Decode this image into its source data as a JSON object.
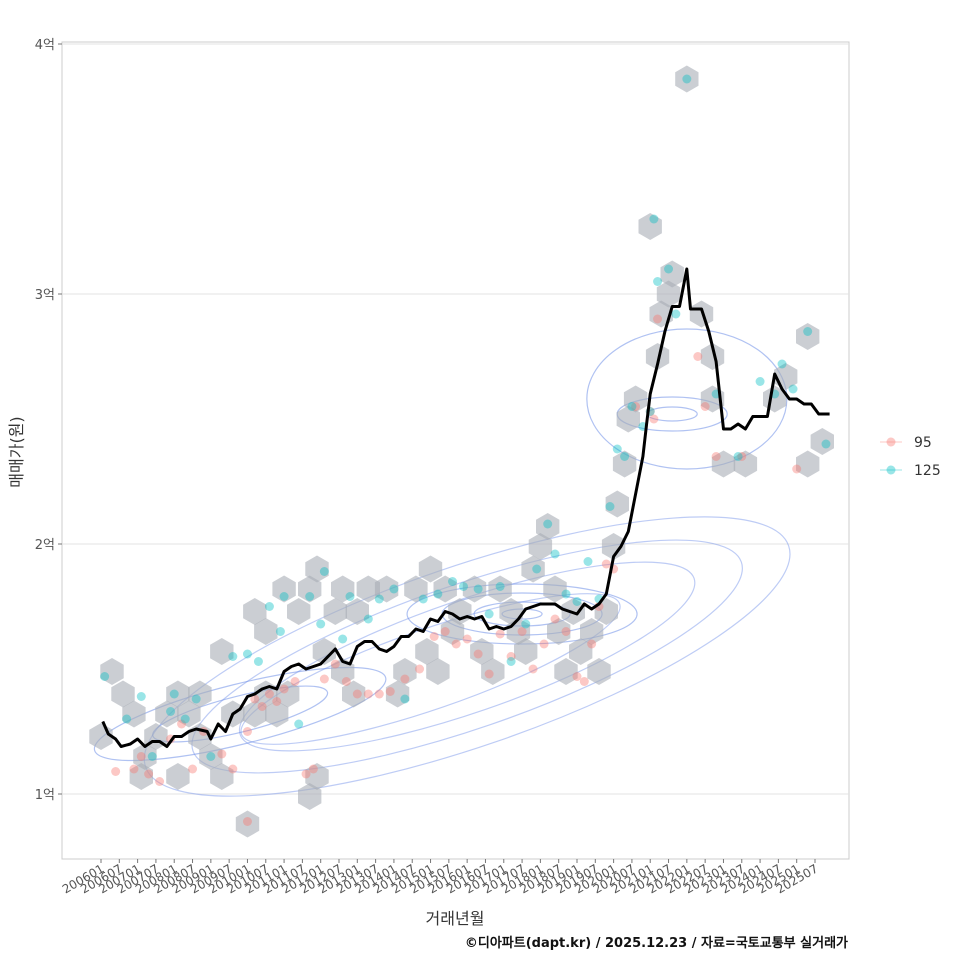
{
  "chart_data": {
    "type": "scatter",
    "title": "",
    "xlabel": "거래년월",
    "ylabel": "매매가(원)",
    "caption": "©디아파트(dapt.kr) / 2025.12.23 / 자료=국토교통부 실거래가",
    "x_ticks": [
      "200601",
      "200607",
      "200701",
      "200707",
      "200801",
      "200807",
      "200901",
      "200907",
      "201001",
      "201007",
      "201101",
      "201107",
      "201201",
      "201207",
      "201301",
      "201307",
      "201401",
      "201407",
      "201501",
      "201507",
      "201601",
      "201607",
      "201701",
      "201707",
      "201801",
      "201807",
      "201901",
      "201907",
      "202001",
      "202007",
      "202101",
      "202107",
      "202201",
      "202207",
      "202301",
      "202307",
      "202401",
      "202407",
      "202501",
      "202507"
    ],
    "y_ticks": [
      {
        "value": 1.0,
        "label": "1억"
      },
      {
        "value": 2.0,
        "label": "2억"
      },
      {
        "value": 3.0,
        "label": "3억"
      },
      {
        "value": 4.0,
        "label": "4억"
      }
    ],
    "ylim": [
      0.75,
      4.03
    ],
    "xlim": [
      2005.6,
      2026.5
    ],
    "grid": true,
    "legend_position": "right",
    "legend": [
      {
        "name": "95",
        "color": "#F8766D"
      },
      {
        "name": "125",
        "color": "#00BFC4"
      }
    ],
    "series": [
      {
        "name": "95",
        "color": "#F8766D",
        "points": [
          [
            2006.4,
            1.09
          ],
          [
            2006.9,
            1.1
          ],
          [
            2007.1,
            1.15
          ],
          [
            2007.3,
            1.08
          ],
          [
            2007.6,
            1.05
          ],
          [
            2007.9,
            1.22
          ],
          [
            2008.2,
            1.28
          ],
          [
            2008.5,
            1.1
          ],
          [
            2008.8,
            1.25
          ],
          [
            2009.3,
            1.16
          ],
          [
            2009.6,
            1.1
          ],
          [
            2010.0,
            1.25
          ],
          [
            2010.2,
            1.38
          ],
          [
            2010.4,
            1.35
          ],
          [
            2010.6,
            1.4
          ],
          [
            2010.8,
            1.37
          ],
          [
            2011.0,
            1.42
          ],
          [
            2011.3,
            1.45
          ],
          [
            2011.6,
            1.08
          ],
          [
            2011.8,
            1.1
          ],
          [
            2012.1,
            1.46
          ],
          [
            2012.4,
            1.52
          ],
          [
            2012.7,
            1.45
          ],
          [
            2013.0,
            1.4
          ],
          [
            2013.3,
            1.4
          ],
          [
            2013.6,
            1.4
          ],
          [
            2013.9,
            1.41
          ],
          [
            2014.3,
            1.46
          ],
          [
            2014.7,
            1.5
          ],
          [
            2015.1,
            1.63
          ],
          [
            2015.4,
            1.65
          ],
          [
            2015.7,
            1.6
          ],
          [
            2016.0,
            1.62
          ],
          [
            2016.3,
            1.56
          ],
          [
            2016.6,
            1.48
          ],
          [
            2016.9,
            1.64
          ],
          [
            2017.2,
            1.55
          ],
          [
            2017.5,
            1.65
          ],
          [
            2017.8,
            1.5
          ],
          [
            2018.1,
            1.6
          ],
          [
            2018.4,
            1.7
          ],
          [
            2018.7,
            1.65
          ],
          [
            2019.0,
            1.47
          ],
          [
            2019.2,
            1.45
          ],
          [
            2019.4,
            1.6
          ],
          [
            2019.6,
            1.75
          ],
          [
            2019.8,
            1.92
          ],
          [
            2020.0,
            1.9
          ],
          [
            2020.6,
            2.55
          ],
          [
            2021.0,
            2.53
          ],
          [
            2021.1,
            2.5
          ],
          [
            2021.2,
            2.9
          ],
          [
            2022.3,
            2.75
          ],
          [
            2022.5,
            2.55
          ],
          [
            2022.8,
            2.35
          ],
          [
            2023.5,
            2.35
          ],
          [
            2025.0,
            2.3
          ],
          [
            2010.0,
            0.89
          ]
        ]
      },
      {
        "name": "125",
        "color": "#00BFC4",
        "points": [
          [
            2006.1,
            1.47
          ],
          [
            2006.7,
            1.3
          ],
          [
            2007.1,
            1.39
          ],
          [
            2007.4,
            1.15
          ],
          [
            2007.9,
            1.33
          ],
          [
            2008.0,
            1.4
          ],
          [
            2008.3,
            1.3
          ],
          [
            2008.6,
            1.38
          ],
          [
            2009.0,
            1.15
          ],
          [
            2009.6,
            1.55
          ],
          [
            2010.0,
            1.56
          ],
          [
            2010.3,
            1.53
          ],
          [
            2010.6,
            1.75
          ],
          [
            2010.9,
            1.65
          ],
          [
            2011.0,
            1.79
          ],
          [
            2011.4,
            1.28
          ],
          [
            2011.7,
            1.79
          ],
          [
            2012.0,
            1.68
          ],
          [
            2012.1,
            1.89
          ],
          [
            2012.6,
            1.62
          ],
          [
            2012.8,
            1.79
          ],
          [
            2013.3,
            1.7
          ],
          [
            2013.6,
            1.78
          ],
          [
            2014.0,
            1.82
          ],
          [
            2014.3,
            1.38
          ],
          [
            2014.8,
            1.78
          ],
          [
            2015.2,
            1.8
          ],
          [
            2015.6,
            1.85
          ],
          [
            2015.9,
            1.83
          ],
          [
            2016.3,
            1.82
          ],
          [
            2016.6,
            1.72
          ],
          [
            2016.9,
            1.83
          ],
          [
            2017.2,
            1.53
          ],
          [
            2017.6,
            1.68
          ],
          [
            2017.9,
            1.9
          ],
          [
            2018.2,
            2.08
          ],
          [
            2018.4,
            1.96
          ],
          [
            2018.7,
            1.8
          ],
          [
            2019.0,
            1.77
          ],
          [
            2019.3,
            1.93
          ],
          [
            2019.6,
            1.78
          ],
          [
            2019.9,
            2.15
          ],
          [
            2020.1,
            2.38
          ],
          [
            2020.3,
            2.35
          ],
          [
            2020.5,
            2.55
          ],
          [
            2020.8,
            2.47
          ],
          [
            2021.0,
            2.53
          ],
          [
            2021.1,
            3.3
          ],
          [
            2021.2,
            3.05
          ],
          [
            2021.5,
            3.1
          ],
          [
            2021.7,
            2.92
          ],
          [
            2022.0,
            3.86
          ],
          [
            2022.8,
            2.6
          ],
          [
            2023.4,
            2.35
          ],
          [
            2024.0,
            2.65
          ],
          [
            2024.4,
            2.6
          ],
          [
            2024.6,
            2.72
          ],
          [
            2024.9,
            2.62
          ],
          [
            2025.3,
            2.85
          ],
          [
            2025.8,
            2.4
          ]
        ]
      }
    ],
    "trend_line": {
      "name": "median",
      "color": "#000000",
      "points": [
        [
          2006.05,
          1.29
        ],
        [
          2006.2,
          1.24
        ],
        [
          2006.4,
          1.22
        ],
        [
          2006.55,
          1.19
        ],
        [
          2006.8,
          1.2
        ],
        [
          2007.0,
          1.22
        ],
        [
          2007.2,
          1.19
        ],
        [
          2007.4,
          1.21
        ],
        [
          2007.6,
          1.21
        ],
        [
          2007.8,
          1.19
        ],
        [
          2008.0,
          1.23
        ],
        [
          2008.2,
          1.23
        ],
        [
          2008.4,
          1.25
        ],
        [
          2008.6,
          1.26
        ],
        [
          2008.9,
          1.25
        ],
        [
          2009.0,
          1.22
        ],
        [
          2009.2,
          1.28
        ],
        [
          2009.4,
          1.25
        ],
        [
          2009.6,
          1.32
        ],
        [
          2009.8,
          1.34
        ],
        [
          2010.0,
          1.39
        ],
        [
          2010.2,
          1.4
        ],
        [
          2010.4,
          1.42
        ],
        [
          2010.6,
          1.43
        ],
        [
          2010.8,
          1.42
        ],
        [
          2011.0,
          1.49
        ],
        [
          2011.2,
          1.51
        ],
        [
          2011.4,
          1.52
        ],
        [
          2011.6,
          1.5
        ],
        [
          2011.8,
          1.51
        ],
        [
          2012.0,
          1.52
        ],
        [
          2012.2,
          1.55
        ],
        [
          2012.4,
          1.58
        ],
        [
          2012.6,
          1.53
        ],
        [
          2012.8,
          1.52
        ],
        [
          2013.0,
          1.59
        ],
        [
          2013.2,
          1.61
        ],
        [
          2013.4,
          1.61
        ],
        [
          2013.6,
          1.58
        ],
        [
          2013.8,
          1.57
        ],
        [
          2014.0,
          1.59
        ],
        [
          2014.2,
          1.63
        ],
        [
          2014.4,
          1.63
        ],
        [
          2014.6,
          1.66
        ],
        [
          2014.8,
          1.65
        ],
        [
          2015.0,
          1.7
        ],
        [
          2015.2,
          1.69
        ],
        [
          2015.4,
          1.73
        ],
        [
          2015.6,
          1.72
        ],
        [
          2015.8,
          1.7
        ],
        [
          2016.0,
          1.71
        ],
        [
          2016.2,
          1.7
        ],
        [
          2016.4,
          1.71
        ],
        [
          2016.6,
          1.66
        ],
        [
          2016.8,
          1.67
        ],
        [
          2017.0,
          1.66
        ],
        [
          2017.2,
          1.67
        ],
        [
          2017.4,
          1.7
        ],
        [
          2017.6,
          1.74
        ],
        [
          2017.8,
          1.75
        ],
        [
          2018.0,
          1.76
        ],
        [
          2018.2,
          1.76
        ],
        [
          2018.4,
          1.76
        ],
        [
          2018.6,
          1.74
        ],
        [
          2018.8,
          1.73
        ],
        [
          2019.0,
          1.72
        ],
        [
          2019.2,
          1.76
        ],
        [
          2019.4,
          1.74
        ],
        [
          2019.6,
          1.76
        ],
        [
          2019.8,
          1.8
        ],
        [
          2020.0,
          1.95
        ],
        [
          2020.2,
          1.99
        ],
        [
          2020.4,
          2.05
        ],
        [
          2020.6,
          2.2
        ],
        [
          2020.8,
          2.35
        ],
        [
          2020.9,
          2.48
        ],
        [
          2021.0,
          2.6
        ],
        [
          2021.2,
          2.72
        ],
        [
          2021.4,
          2.85
        ],
        [
          2021.6,
          2.95
        ],
        [
          2021.8,
          2.95
        ],
        [
          2022.0,
          3.1
        ],
        [
          2022.1,
          2.94
        ],
        [
          2022.4,
          2.94
        ],
        [
          2022.6,
          2.85
        ],
        [
          2022.8,
          2.73
        ],
        [
          2023.0,
          2.46
        ],
        [
          2023.2,
          2.46
        ],
        [
          2023.4,
          2.48
        ],
        [
          2023.6,
          2.46
        ],
        [
          2023.8,
          2.51
        ],
        [
          2024.0,
          2.51
        ],
        [
          2024.2,
          2.51
        ],
        [
          2024.4,
          2.68
        ],
        [
          2024.6,
          2.62
        ],
        [
          2024.8,
          2.58
        ],
        [
          2025.0,
          2.58
        ],
        [
          2025.2,
          2.56
        ],
        [
          2025.4,
          2.56
        ],
        [
          2025.6,
          2.52
        ],
        [
          2025.9,
          2.52
        ]
      ]
    },
    "hex_bins": [
      [
        2006.0,
        1.23
      ],
      [
        2006.3,
        1.49
      ],
      [
        2006.6,
        1.4
      ],
      [
        2006.9,
        1.32
      ],
      [
        2007.2,
        1.15
      ],
      [
        2007.1,
        1.07
      ],
      [
        2007.5,
        1.23
      ],
      [
        2007.8,
        1.32
      ],
      [
        2008.1,
        1.4
      ],
      [
        2008.4,
        1.32
      ],
      [
        2008.1,
        1.07
      ],
      [
        2008.7,
        1.4
      ],
      [
        2008.7,
        1.23
      ],
      [
        2009.0,
        1.15
      ],
      [
        2009.3,
        1.07
      ],
      [
        2009.3,
        1.57
      ],
      [
        2009.6,
        1.32
      ],
      [
        2010.0,
        0.88
      ],
      [
        2010.2,
        1.32
      ],
      [
        2010.2,
        1.73
      ],
      [
        2010.5,
        1.4
      ],
      [
        2010.5,
        1.65
      ],
      [
        2010.8,
        1.32
      ],
      [
        2011.0,
        1.82
      ],
      [
        2011.1,
        1.4
      ],
      [
        2011.4,
        1.73
      ],
      [
        2011.7,
        1.82
      ],
      [
        2011.7,
        0.99
      ],
      [
        2011.9,
        1.07
      ],
      [
        2011.9,
        1.9
      ],
      [
        2012.1,
        1.57
      ],
      [
        2012.4,
        1.73
      ],
      [
        2012.6,
        1.82
      ],
      [
        2012.6,
        1.49
      ],
      [
        2012.9,
        1.4
      ],
      [
        2013.0,
        1.73
      ],
      [
        2013.3,
        1.82
      ],
      [
        2013.8,
        1.82
      ],
      [
        2014.1,
        1.4
      ],
      [
        2014.3,
        1.49
      ],
      [
        2014.6,
        1.82
      ],
      [
        2014.9,
        1.57
      ],
      [
        2015.0,
        1.9
      ],
      [
        2015.2,
        1.49
      ],
      [
        2015.4,
        1.82
      ],
      [
        2015.6,
        1.65
      ],
      [
        2015.8,
        1.73
      ],
      [
        2016.2,
        1.82
      ],
      [
        2016.4,
        1.57
      ],
      [
        2016.7,
        1.49
      ],
      [
        2016.9,
        1.82
      ],
      [
        2017.2,
        1.73
      ],
      [
        2017.4,
        1.65
      ],
      [
        2017.6,
        1.57
      ],
      [
        2017.8,
        1.9
      ],
      [
        2018.0,
        1.99
      ],
      [
        2018.2,
        2.07
      ],
      [
        2018.4,
        1.82
      ],
      [
        2018.5,
        1.65
      ],
      [
        2018.7,
        1.49
      ],
      [
        2018.9,
        1.73
      ],
      [
        2019.1,
        1.57
      ],
      [
        2019.4,
        1.65
      ],
      [
        2019.6,
        1.49
      ],
      [
        2019.8,
        1.73
      ],
      [
        2020.0,
        1.99
      ],
      [
        2020.1,
        2.16
      ],
      [
        2020.3,
        2.32
      ],
      [
        2020.4,
        2.5
      ],
      [
        2020.6,
        2.58
      ],
      [
        2021.0,
        3.27
      ],
      [
        2021.2,
        2.75
      ],
      [
        2021.3,
        2.92
      ],
      [
        2021.5,
        3.0
      ],
      [
        2021.6,
        3.08
      ],
      [
        2022.0,
        3.86
      ],
      [
        2022.4,
        2.92
      ],
      [
        2022.7,
        2.75
      ],
      [
        2022.7,
        2.58
      ],
      [
        2023.0,
        2.32
      ],
      [
        2023.6,
        2.32
      ],
      [
        2024.4,
        2.58
      ],
      [
        2024.7,
        2.67
      ],
      [
        2025.3,
        2.83
      ],
      [
        2025.3,
        2.32
      ],
      [
        2025.7,
        2.41
      ]
    ]
  }
}
